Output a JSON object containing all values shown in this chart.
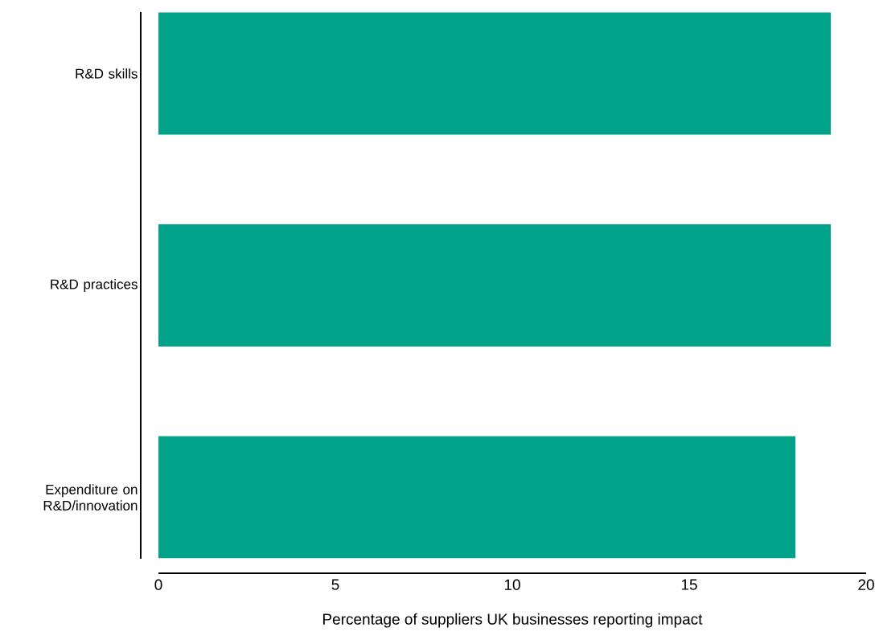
{
  "chart_data": {
    "type": "bar",
    "orientation": "horizontal",
    "categories": [
      "R&D  skills",
      "R&D practices",
      "Expenditure on R&D/innovation"
    ],
    "values": [
      19,
      19,
      18
    ],
    "color": "#00a38a",
    "xlim": [
      0,
      20
    ],
    "xticks": [
      0,
      5,
      10,
      15,
      20
    ],
    "xlabel": "Percentage of suppliers UK businesses reporting impact"
  }
}
